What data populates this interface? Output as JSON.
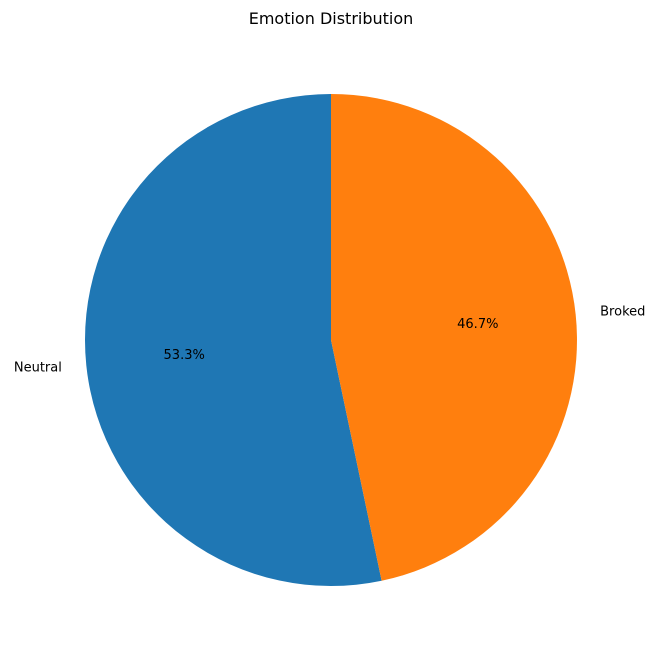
{
  "chart_data": {
    "type": "pie",
    "title": "Emotion Distribution",
    "categories": [
      "Neutral",
      "Broked"
    ],
    "values": [
      53.3,
      46.7
    ],
    "percent_labels": [
      "53.3%",
      "46.7%"
    ],
    "colors": [
      "#1f77b4",
      "#ff7f0e"
    ],
    "start_angle_deg": 90,
    "direction": "counterclockwise",
    "legend": "none"
  }
}
